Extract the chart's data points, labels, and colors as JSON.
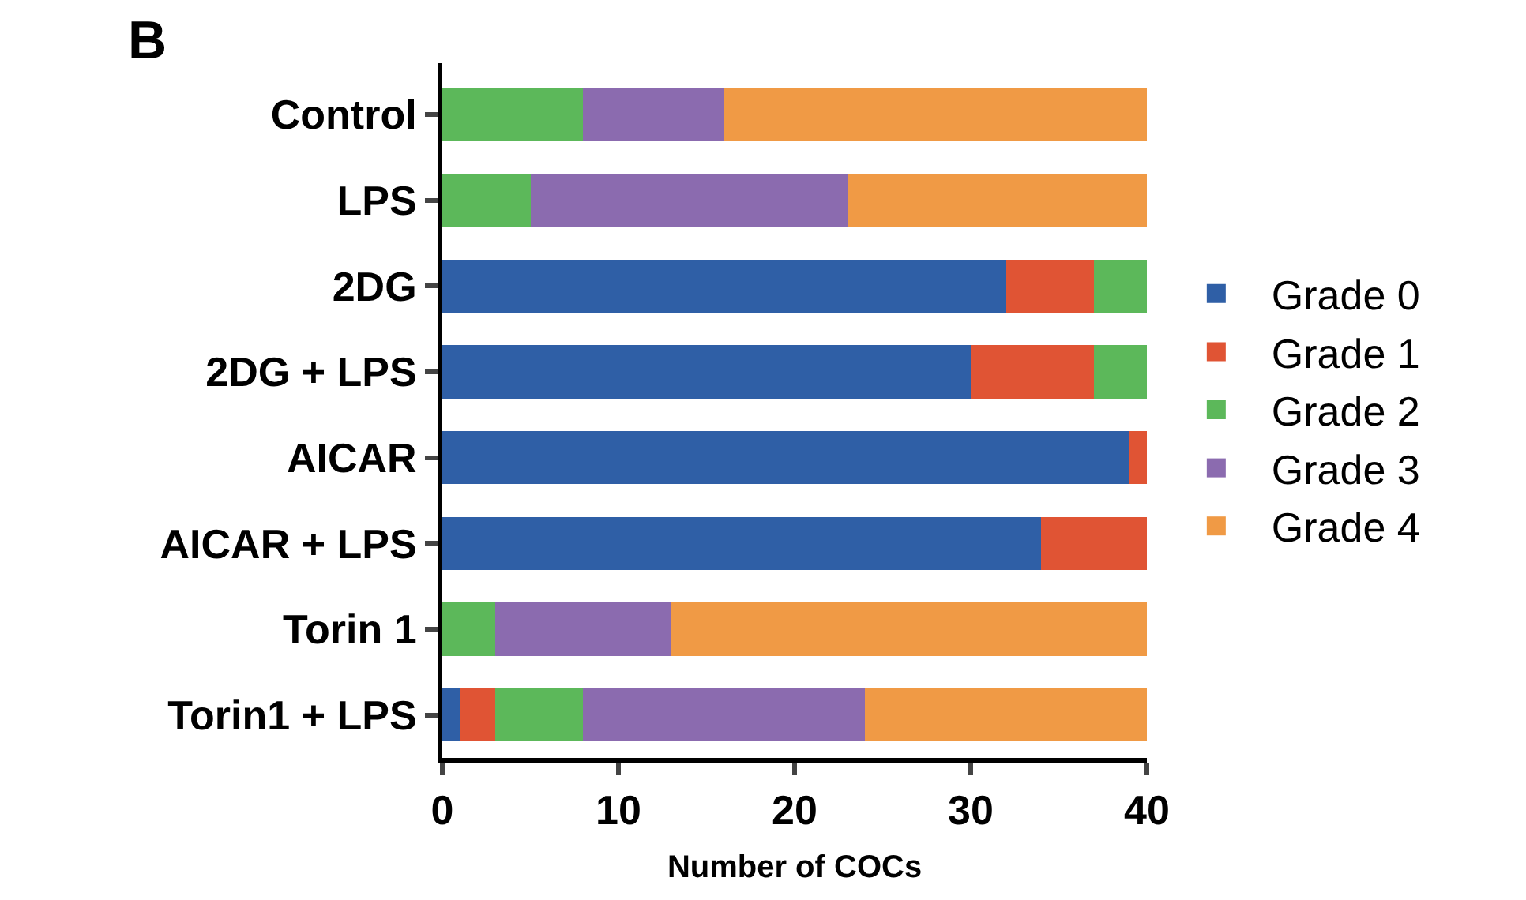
{
  "chart_data": {
    "type": "bar",
    "orientation": "horizontal",
    "stacked": true,
    "xlabel": "Number of COCs",
    "annotations": [
      "B"
    ],
    "categories": [
      "Control",
      "LPS",
      "2DG",
      "2DG + LPS",
      "AICAR",
      "AICAR + LPS",
      "Torin 1",
      "Torin1 + LPS"
    ],
    "series": [
      {
        "name": "Grade 0",
        "color": "#2f5fa6",
        "values": [
          0,
          0,
          32,
          30,
          39,
          34,
          0,
          1
        ]
      },
      {
        "name": "Grade 1",
        "color": "#e05434",
        "values": [
          0,
          0,
          5,
          7,
          1,
          6,
          0,
          2
        ]
      },
      {
        "name": "Grade 2",
        "color": "#5cb85a",
        "values": [
          8,
          5,
          3,
          3,
          0,
          0,
          3,
          5
        ]
      },
      {
        "name": "Grade 3",
        "color": "#8b6baf",
        "values": [
          8,
          18,
          0,
          0,
          0,
          0,
          10,
          16
        ]
      },
      {
        "name": "Grade 4",
        "color": "#f09a45",
        "values": [
          24,
          17,
          0,
          0,
          0,
          0,
          27,
          16
        ]
      }
    ],
    "xlim": [
      0,
      40
    ],
    "xticks": [
      0,
      10,
      20,
      30,
      40
    ],
    "legend": "right"
  }
}
